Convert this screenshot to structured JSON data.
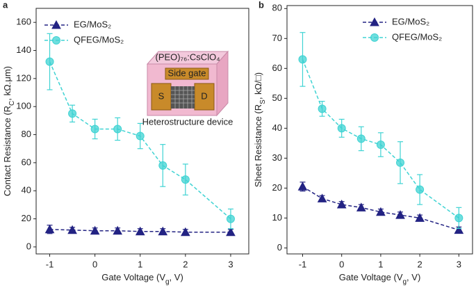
{
  "chart_data": [
    {
      "type": "line",
      "panel_label": "a",
      "xlabel": [
        "Gate Voltage (V",
        "g",
        ", V)"
      ],
      "ylabel": [
        "Contact Resistance (R",
        "C",
        ", kΩ.μm)"
      ],
      "x": [
        -1,
        -0.5,
        0,
        0.5,
        1,
        1.5,
        2,
        3
      ],
      "series": [
        {
          "name": "EG/MoS₂",
          "color": "#232383",
          "marker": "triangle",
          "values": [
            12.5,
            12,
            11.5,
            11.5,
            11,
            11,
            10.5,
            10.5
          ],
          "errors": [
            3,
            2,
            2,
            2,
            2,
            2,
            2,
            2
          ]
        },
        {
          "name": "QFEG/MoS₂",
          "color": "#3fd3d3",
          "marker": "circle",
          "values": [
            132,
            95,
            84,
            84,
            79,
            58,
            48,
            20
          ],
          "errors": [
            20,
            6,
            7,
            8,
            9,
            15,
            11,
            7
          ]
        }
      ],
      "xlim": [
        -1.3,
        3.4
      ],
      "xticks": [
        -1,
        0,
        1,
        2,
        3
      ],
      "ylim": [
        -5,
        170
      ],
      "yticks": [
        0,
        20,
        40,
        60,
        80,
        100,
        120,
        140,
        160
      ],
      "legend": "upper left",
      "annotations": [
        "(PEO)₇₆:CsClO₄",
        "Side gate",
        "S",
        "D",
        "Heterostructure device"
      ]
    },
    {
      "type": "line",
      "panel_label": "b",
      "xlabel": [
        "Gate Voltage (V",
        "g",
        ", V)"
      ],
      "ylabel": [
        "Sheet Resistance (R",
        "S",
        ", kΩ/□)"
      ],
      "x": [
        -1,
        -0.5,
        0,
        0.5,
        1,
        1.5,
        2,
        3
      ],
      "series": [
        {
          "name": "EG/MoS₂",
          "color": "#232383",
          "marker": "triangle",
          "values": [
            20.5,
            16.5,
            14.5,
            13.5,
            12,
            11,
            10,
            6
          ],
          "errors": [
            1.5,
            1,
            1,
            1,
            1,
            1,
            1,
            1
          ]
        },
        {
          "name": "QFEG/MoS₂",
          "color": "#3fd3d3",
          "marker": "circle",
          "values": [
            63,
            46.5,
            40,
            36.5,
            34.5,
            28.5,
            19.5,
            10
          ],
          "errors": [
            9,
            2.5,
            3,
            4,
            4,
            7,
            5,
            3.5
          ]
        }
      ],
      "xlim": [
        -1.4,
        3.35
      ],
      "xticks": [
        -1,
        0,
        1,
        2,
        3
      ],
      "ylim": [
        -2,
        81
      ],
      "yticks": [
        0,
        10,
        20,
        30,
        40,
        50,
        60,
        70,
        80
      ],
      "legend": "upper right"
    }
  ]
}
